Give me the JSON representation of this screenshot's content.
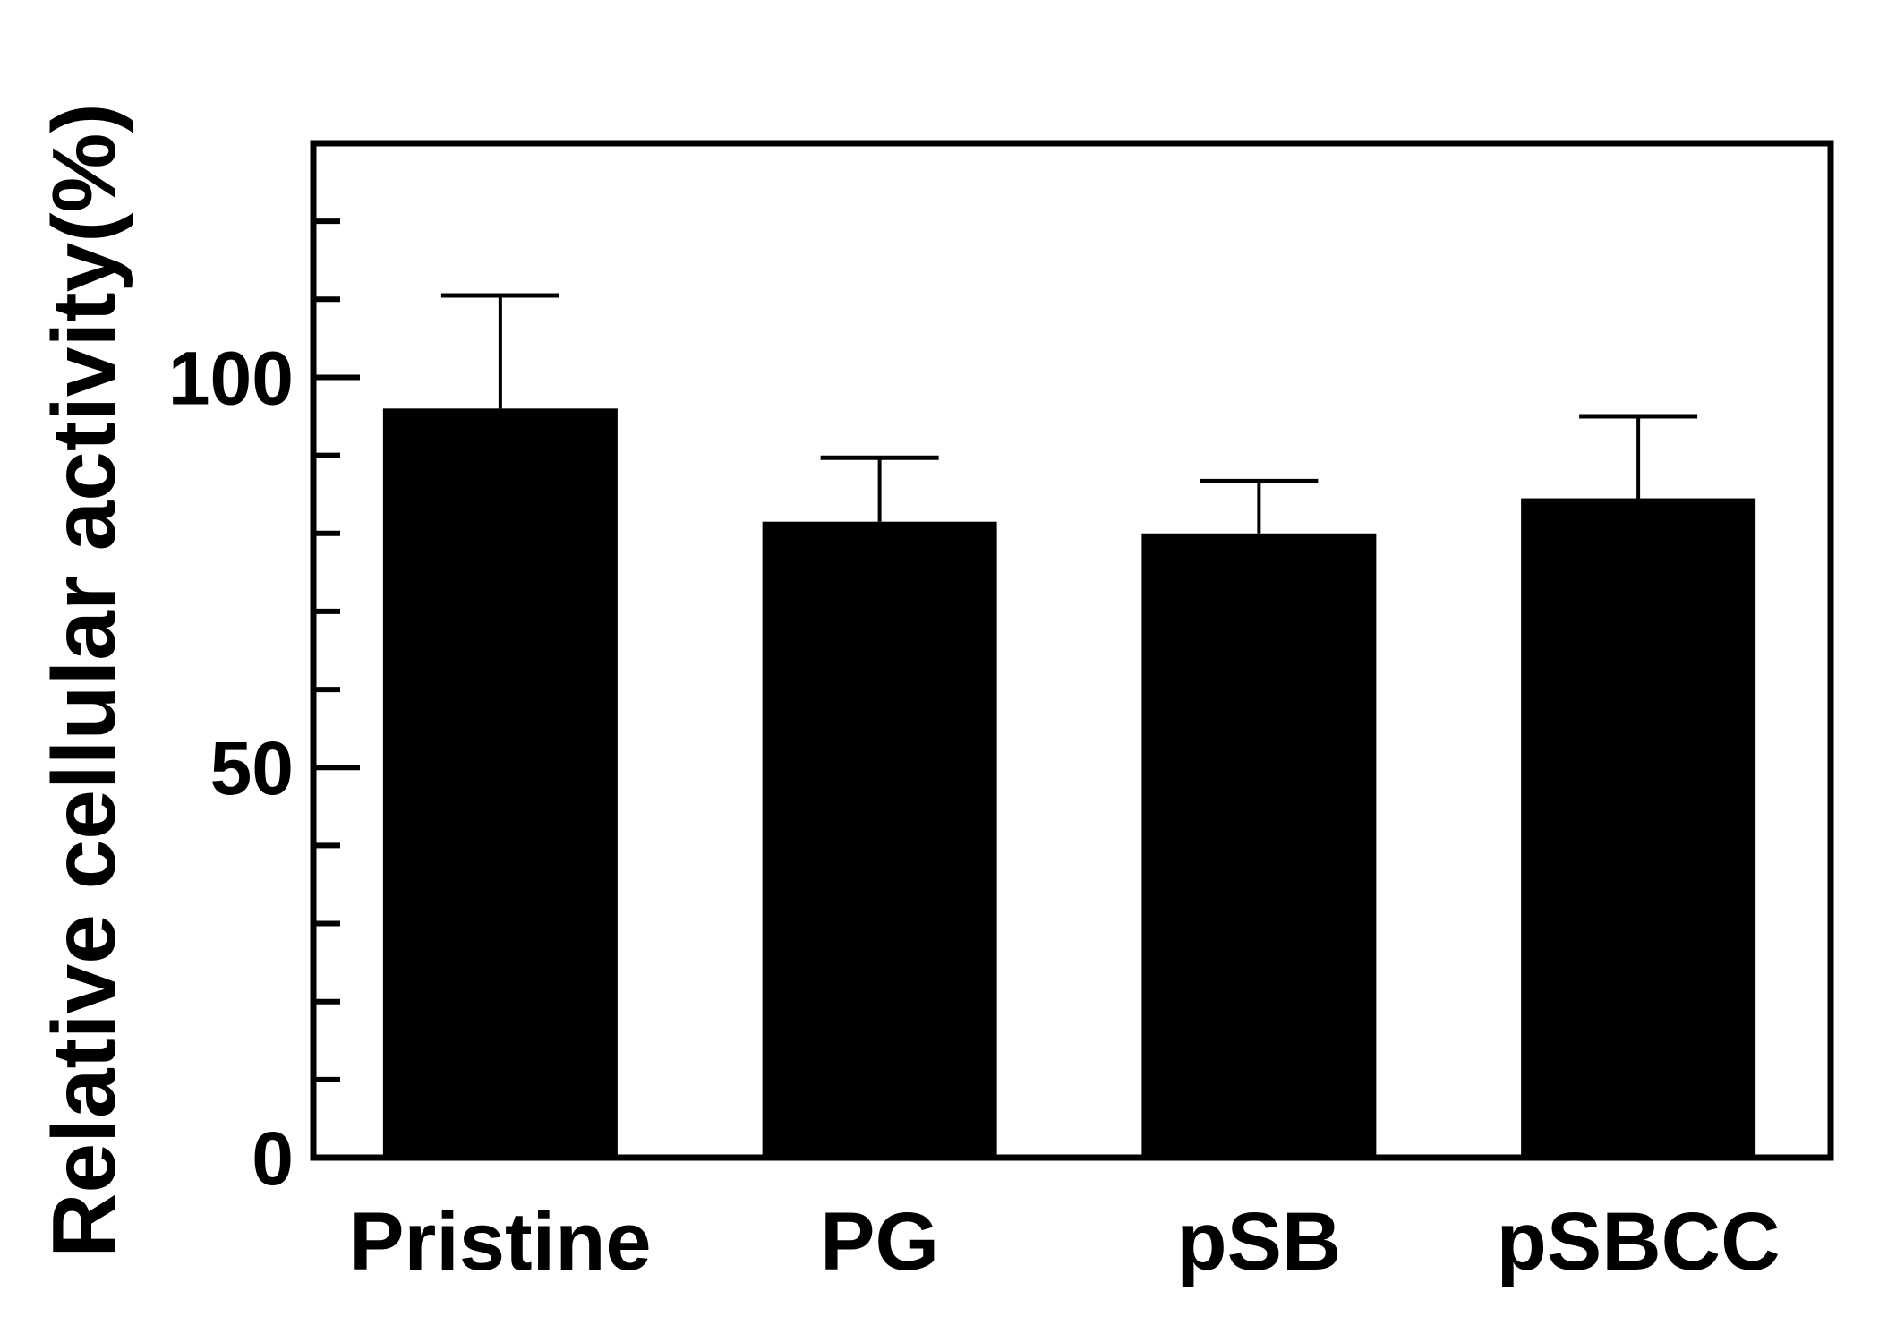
{
  "chart_data": {
    "type": "bar",
    "title": "",
    "xlabel": "",
    "ylabel": "Relative cellular activity(%)",
    "categories": [
      "Pristine",
      "PG",
      "pSB",
      "pSBCC"
    ],
    "values": [
      96,
      81.5,
      80,
      84.5
    ],
    "errors": [
      14.5,
      8.2,
      6.7,
      10.5
    ],
    "ylim": [
      0,
      130
    ],
    "yticks_major": [
      0,
      50,
      100
    ],
    "ytick_labels": [
      "0",
      "50",
      "100"
    ],
    "yticks_minor_step": 10,
    "bar_color": "#000000",
    "grid": false,
    "legend": "none"
  }
}
